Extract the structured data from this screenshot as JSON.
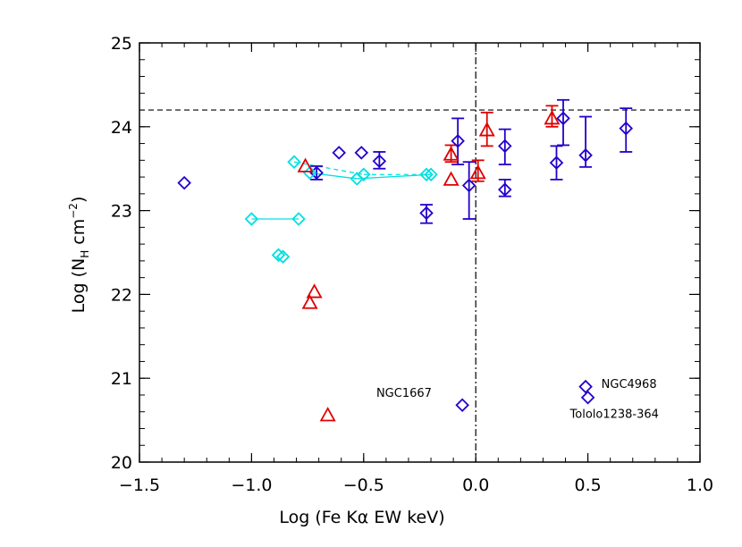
{
  "chart_data": {
    "type": "scatter",
    "title": "",
    "xlabel": "Log (Fe Kα EW keV)",
    "ylabel": {
      "base": "Log (N",
      "sub": "H",
      "mid": " cm",
      "sup": "−2",
      "end": ")"
    },
    "xlim": [
      -1.5,
      1.0
    ],
    "ylim": [
      20,
      25
    ],
    "x_ticks": [
      -1.5,
      -1.0,
      -0.5,
      0.0,
      0.5,
      1.0
    ],
    "x_tick_labels": [
      "−1.5",
      "−1.0",
      "−0.5",
      "0.0",
      "0.5",
      "1.0"
    ],
    "y_ticks": [
      20,
      21,
      22,
      23,
      24,
      25
    ],
    "y_tick_labels": [
      "20",
      "21",
      "22",
      "23",
      "24",
      "25"
    ],
    "reference_lines": [
      {
        "orientation": "horizontal",
        "value": 24.2,
        "style": "dashed"
      },
      {
        "orientation": "vertical",
        "value": 0.0,
        "style": "dash-dot"
      }
    ],
    "colors": {
      "blue": "#2200cc",
      "cyan": "#00e0e0",
      "red": "#e00000"
    },
    "series": [
      {
        "name": "blue diamonds",
        "marker": "diamond",
        "color": "#2200cc",
        "points": [
          {
            "x": -1.3,
            "y": 23.33
          },
          {
            "x": -0.71,
            "y": 23.45,
            "yerr": [
              23.37,
              23.53
            ]
          },
          {
            "x": -0.61,
            "y": 23.69
          },
          {
            "x": -0.51,
            "y": 23.69
          },
          {
            "x": -0.43,
            "y": 23.59,
            "yerr": [
              23.5,
              23.7
            ]
          },
          {
            "x": -0.22,
            "y": 22.97,
            "yerr": [
              22.85,
              23.07
            ]
          },
          {
            "x": -0.08,
            "y": 23.83,
            "yerr": [
              23.55,
              24.1
            ]
          },
          {
            "x": -0.03,
            "y": 23.3,
            "yerr": [
              22.9,
              23.58
            ]
          },
          {
            "x": -0.06,
            "y": 20.68
          },
          {
            "x": 0.13,
            "y": 23.77,
            "yerr": [
              23.55,
              23.97
            ]
          },
          {
            "x": 0.13,
            "y": 23.25,
            "yerr": [
              23.17,
              23.37
            ]
          },
          {
            "x": 0.36,
            "y": 23.57,
            "yerr": [
              23.37,
              23.77
            ]
          },
          {
            "x": 0.39,
            "y": 24.1,
            "yerr": [
              23.78,
              24.32
            ]
          },
          {
            "x": 0.49,
            "y": 23.66,
            "yerr": [
              23.52,
              24.12
            ]
          },
          {
            "x": 0.67,
            "y": 23.98,
            "yerr": [
              23.7,
              24.22
            ]
          },
          {
            "x": 0.49,
            "y": 20.9
          },
          {
            "x": 0.5,
            "y": 20.77
          }
        ]
      },
      {
        "name": "cyan diamonds",
        "marker": "diamond",
        "color": "#00e0e0",
        "points": [
          {
            "x": -1.0,
            "y": 22.9
          },
          {
            "x": -0.79,
            "y": 22.9
          },
          {
            "x": -0.88,
            "y": 22.47
          },
          {
            "x": -0.86,
            "y": 22.45
          },
          {
            "x": -0.81,
            "y": 23.58
          },
          {
            "x": -0.74,
            "y": 23.45
          },
          {
            "x": -0.53,
            "y": 23.38
          },
          {
            "x": -0.5,
            "y": 23.43
          },
          {
            "x": -0.22,
            "y": 23.43
          },
          {
            "x": -0.2,
            "y": 23.43
          }
        ],
        "links": [
          {
            "from": [
              -1.0,
              22.9
            ],
            "to": [
              -0.79,
              22.9
            ],
            "style": "solid"
          },
          {
            "from": [
              -0.74,
              23.45
            ],
            "to": [
              -0.53,
              23.38
            ],
            "style": "solid"
          },
          {
            "from": [
              -0.53,
              23.38
            ],
            "to": [
              -0.2,
              23.43
            ],
            "style": "solid"
          },
          {
            "from": [
              -0.81,
              23.58
            ],
            "to": [
              -0.5,
              23.43
            ],
            "style": "dashed"
          },
          {
            "from": [
              -0.5,
              23.43
            ],
            "to": [
              -0.22,
              23.43
            ],
            "style": "dashed"
          }
        ]
      },
      {
        "name": "red triangles",
        "marker": "triangle",
        "color": "#e00000",
        "points": [
          {
            "x": -0.76,
            "y": 23.53
          },
          {
            "x": -0.72,
            "y": 22.03
          },
          {
            "x": -0.74,
            "y": 21.9
          },
          {
            "x": -0.66,
            "y": 20.56
          },
          {
            "x": -0.11,
            "y": 23.37
          },
          {
            "x": -0.11,
            "y": 23.67,
            "yerr": [
              23.58,
              23.78
            ]
          },
          {
            "x": 0.01,
            "y": 23.45,
            "yerr": [
              23.35,
              23.6
            ]
          },
          {
            "x": 0.05,
            "y": 23.96,
            "yerr": [
              23.77,
              24.17
            ]
          },
          {
            "x": 0.34,
            "y": 24.1,
            "yerr": [
              24.0,
              24.25
            ]
          }
        ]
      }
    ],
    "annotations": [
      {
        "text": "NGC1667",
        "x": -0.32,
        "y": 20.82,
        "anchor": "middle"
      },
      {
        "text": "NGC4968",
        "x": 0.56,
        "y": 20.93,
        "anchor": "start"
      },
      {
        "text": "Tololo1238-364",
        "x": 0.42,
        "y": 20.57,
        "anchor": "start"
      }
    ]
  }
}
